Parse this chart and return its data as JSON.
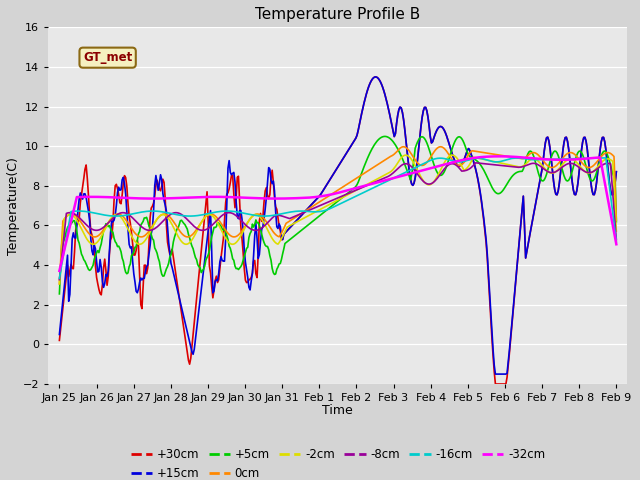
{
  "title": "Temperature Profile B",
  "xlabel": "Time",
  "ylabel": "Temperature(C)",
  "ylim": [
    -2,
    16
  ],
  "yticks": [
    -2,
    0,
    2,
    4,
    6,
    8,
    10,
    12,
    14,
    16
  ],
  "annotation_text": "GT_met",
  "bg_color": "#e0e0e0",
  "series_colors": {
    "+30cm": "#dd0000",
    "+15cm": "#0000dd",
    "+5cm": "#00cc00",
    "0cm": "#ff8800",
    "-2cm": "#dddd00",
    "-8cm": "#990099",
    "-16cm": "#00cccc",
    "-32cm": "#ff00ff"
  },
  "xtick_labels": [
    "Jan 25",
    "Jan 26",
    "Jan 27",
    "Jan 28",
    "Jan 29",
    "Jan 30",
    "Jan 31",
    "Feb 1",
    "Feb 2",
    "Feb 3",
    "Feb 4",
    "Feb 5",
    "Feb 6",
    "Feb 7",
    "Feb 8",
    "Feb 9"
  ],
  "figsize": [
    6.4,
    4.8
  ],
  "dpi": 100
}
